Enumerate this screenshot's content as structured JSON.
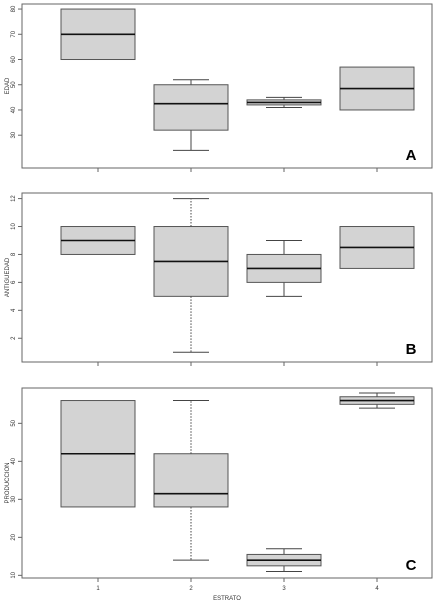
{
  "colors": {
    "box_fill": "#d3d3d3",
    "box_stroke": "#555555",
    "median": "#111111",
    "whisker": "#444444",
    "frame": "#666666"
  },
  "chart_data": [
    {
      "type": "box",
      "panel_label": "A",
      "ylabel": "EDAD",
      "xlabel": "",
      "categories": [
        "1",
        "2",
        "3",
        "4"
      ],
      "show_x_ticks": true,
      "show_x_tick_labels": false,
      "yticks": [
        30,
        40,
        50,
        60,
        70,
        80
      ],
      "ylim": [
        17,
        82
      ],
      "boxes": [
        {
          "category": "1",
          "whisker_low": 60,
          "q1": 60,
          "median": 70,
          "q3": 80,
          "whisker_high": 80,
          "dotted_whiskers": false
        },
        {
          "category": "2",
          "whisker_low": 24,
          "q1": 32,
          "median": 42.5,
          "q3": 50,
          "whisker_high": 52,
          "dotted_whiskers": false
        },
        {
          "category": "3",
          "whisker_low": 41,
          "q1": 42,
          "median": 43,
          "q3": 44,
          "whisker_high": 45,
          "dotted_whiskers": false
        },
        {
          "category": "4",
          "whisker_low": 40,
          "q1": 40,
          "median": 48.5,
          "q3": 57,
          "whisker_high": 57,
          "dotted_whiskers": false
        }
      ]
    },
    {
      "type": "box",
      "panel_label": "B",
      "ylabel": "ANTIGUEDAD",
      "xlabel": "",
      "categories": [
        "1",
        "2",
        "3",
        "4"
      ],
      "show_x_ticks": true,
      "show_x_tick_labels": false,
      "yticks": [
        2,
        4,
        6,
        8,
        10,
        12
      ],
      "ylim": [
        0.3,
        12.4
      ],
      "boxes": [
        {
          "category": "1",
          "whisker_low": 8,
          "q1": 8,
          "median": 9,
          "q3": 10,
          "whisker_high": 10,
          "dotted_whiskers": false
        },
        {
          "category": "2",
          "whisker_low": 1,
          "q1": 5,
          "median": 7.5,
          "q3": 10,
          "whisker_high": 12,
          "dotted_whiskers": true
        },
        {
          "category": "3",
          "whisker_low": 5,
          "q1": 6,
          "median": 7,
          "q3": 8,
          "whisker_high": 9,
          "dotted_whiskers": false
        },
        {
          "category": "4",
          "whisker_low": 7,
          "q1": 7,
          "median": 8.5,
          "q3": 10,
          "whisker_high": 10,
          "dotted_whiskers": false
        }
      ]
    },
    {
      "type": "box",
      "panel_label": "C",
      "ylabel": "PRODUCCION",
      "xlabel": "ESTRATO",
      "categories": [
        "1",
        "2",
        "3",
        "4"
      ],
      "show_x_ticks": true,
      "show_x_tick_labels": true,
      "yticks": [
        10,
        20,
        30,
        40,
        50
      ],
      "ylim": [
        9.3,
        59.3
      ],
      "boxes": [
        {
          "category": "1",
          "whisker_low": 28,
          "q1": 28,
          "median": 42,
          "q3": 56,
          "whisker_high": 56,
          "dotted_whiskers": false
        },
        {
          "category": "2",
          "whisker_low": 14,
          "q1": 28,
          "median": 31.5,
          "q3": 42,
          "whisker_high": 56,
          "dotted_whiskers": true
        },
        {
          "category": "3",
          "whisker_low": 11,
          "q1": 12.5,
          "median": 14,
          "q3": 15.5,
          "whisker_high": 17,
          "dotted_whiskers": false
        },
        {
          "category": "4",
          "whisker_low": 54,
          "q1": 55,
          "median": 56,
          "q3": 57,
          "whisker_high": 58,
          "dotted_whiskers": false
        }
      ]
    }
  ]
}
